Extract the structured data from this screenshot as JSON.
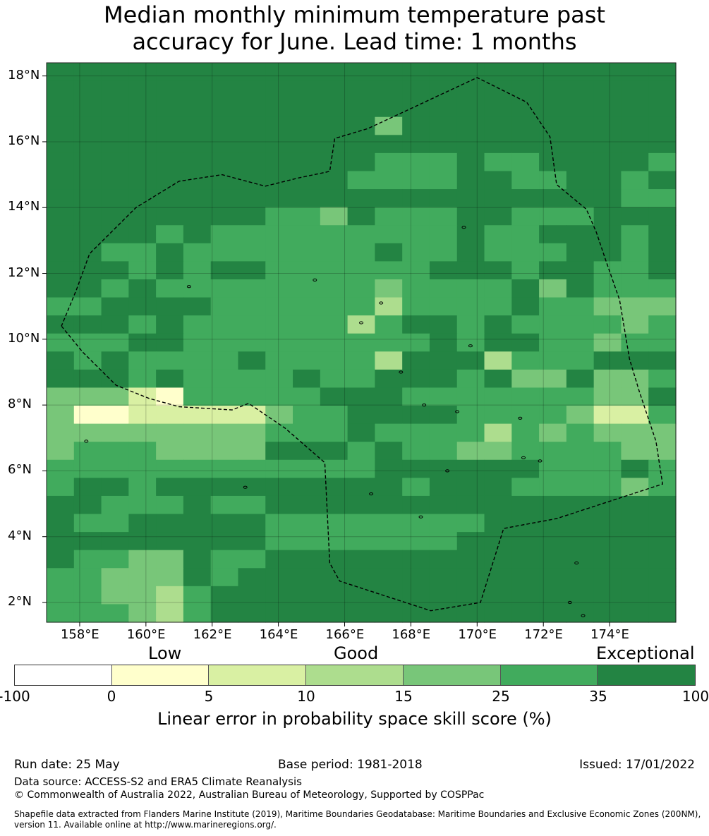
{
  "title": [
    "Median monthly minimum temperature past",
    "accuracy for June. Lead time: 1 months"
  ],
  "map": {
    "lat_range": [
      1.4,
      18.4
    ],
    "lon_range": [
      157.0,
      176.0
    ],
    "x_ticks": [
      "158°E",
      "160°E",
      "162°E",
      "164°E",
      "166°E",
      "168°E",
      "170°E",
      "172°E",
      "174°E"
    ],
    "x_tick_values": [
      158,
      160,
      162,
      164,
      166,
      168,
      170,
      172,
      174
    ],
    "y_ticks": [
      "18°N",
      "16°N",
      "14°N",
      "12°N",
      "10°N",
      "8°N",
      "6°N",
      "4°N",
      "2°N"
    ],
    "y_tick_values": [
      18,
      16,
      14,
      12,
      10,
      8,
      6,
      4,
      2
    ],
    "grid": true,
    "boundary_style": "dashed",
    "boundary_points": [
      [
        157.45,
        10.4
      ],
      [
        158.1,
        9.6
      ],
      [
        159.1,
        8.6
      ],
      [
        160.1,
        8.2
      ],
      [
        161.0,
        7.95
      ],
      [
        162.6,
        7.85
      ],
      [
        163.1,
        8.05
      ],
      [
        164.2,
        7.3
      ],
      [
        165.4,
        6.25
      ],
      [
        165.55,
        3.2
      ],
      [
        165.85,
        2.65
      ],
      [
        168.6,
        1.75
      ],
      [
        170.1,
        2.0
      ],
      [
        170.8,
        4.25
      ],
      [
        172.4,
        4.55
      ],
      [
        175.6,
        5.6
      ],
      [
        175.4,
        6.9
      ],
      [
        174.9,
        8.4
      ],
      [
        174.6,
        9.4
      ],
      [
        174.3,
        11.2
      ],
      [
        173.9,
        12.35
      ],
      [
        173.6,
        13.25
      ],
      [
        173.3,
        13.95
      ],
      [
        172.4,
        14.7
      ],
      [
        172.2,
        16.15
      ],
      [
        171.5,
        17.2
      ],
      [
        170.0,
        17.95
      ],
      [
        166.7,
        16.4
      ],
      [
        165.7,
        16.1
      ],
      [
        165.55,
        15.1
      ],
      [
        164.6,
        14.9
      ],
      [
        163.6,
        14.65
      ],
      [
        162.3,
        15.0
      ],
      [
        161.0,
        14.8
      ],
      [
        159.7,
        14.0
      ],
      [
        158.3,
        12.6
      ],
      [
        157.9,
        11.5
      ],
      [
        157.45,
        10.4
      ]
    ],
    "islands": [
      [
        158.2,
        6.9
      ],
      [
        163.0,
        5.5
      ],
      [
        166.5,
        10.5
      ],
      [
        167.7,
        9.0
      ],
      [
        168.4,
        8.0
      ],
      [
        169.4,
        7.8
      ],
      [
        171.4,
        6.4
      ],
      [
        171.9,
        6.3
      ],
      [
        173.0,
        3.2
      ],
      [
        172.8,
        2.0
      ],
      [
        173.2,
        1.6
      ],
      [
        165.1,
        11.8
      ],
      [
        161.3,
        11.6
      ],
      [
        167.1,
        11.1
      ],
      [
        169.8,
        9.8
      ],
      [
        171.3,
        7.6
      ],
      [
        166.8,
        5.3
      ],
      [
        168.3,
        4.6
      ],
      [
        169.1,
        6.0
      ],
      [
        169.6,
        13.4
      ]
    ]
  },
  "chart_data": {
    "type": "heatmap",
    "title": "Median monthly minimum temperature past accuracy for June. Lead time: 1 months",
    "variable": "Linear error in probability space skill score (%)",
    "x_range": [
      157.0,
      176.0
    ],
    "y_range": [
      1.4,
      18.4
    ],
    "grid_note": "Gridded LEPS skill score; lat rows from 18.4°N (north) to 1.4°N (south), ~0.83° cells, 23 columns × 31 rows, category indices 0-6 per legend bins",
    "classes": [
      "-100 to 0",
      "0 to 5",
      "5 to 10",
      "10 to 15",
      "15 to 25",
      "25 to 35",
      "35 to 100"
    ],
    "cells": [
      "66666666666666666666666",
      "66666666666666666666666",
      "66666666666666666666666",
      "66666666666646666666666",
      "66666666666666666666666",
      "66666666666655565566665",
      "66666666666555566556656",
      "66666666666666666666655",
      "66666666554655566555666",
      "66665655555555565566656",
      "66556555555565565556656",
      "66656566555555666566556",
      "66565555555545555646555",
      "55666655555535555655444",
      "66656555555356656555545",
      "55566555555555656655455",
      "65655556555536663555666",
      "66656555565566656446445",
      "44421555556665555555446",
      "41122222455666655554225",
      "44444444555655553545444",
      "45554444666565544555544",
      "55555555555566666655565",
      "56656666666665666555545",
      "66555655666666666666666",
      "65566666555555556666666",
      "66666666555555566666666",
      "65544655666666666666666",
      "55444656666666666666666",
      "55443566666666666666666",
      "55543566666666666666666"
    ]
  },
  "legend": {
    "category_labels": [
      "Low",
      "Good",
      "Exceptional"
    ],
    "ticks": [
      "-100",
      "0",
      "5",
      "10",
      "15",
      "25",
      "35",
      "100"
    ],
    "colors": [
      "#ffffff",
      "#ffffcc",
      "#d9f0a3",
      "#addd8e",
      "#78c679",
      "#41ab5d",
      "#238443"
    ],
    "title": "Linear error in probability space skill score (%)"
  },
  "footer": {
    "run_date": "Run date: 25 May",
    "base_period": "Base period: 1981-2018",
    "issued": "Issued: 17/01/2022",
    "data_source": "Data source: ACCESS-S2 and ERA5 Climate Reanalysis",
    "copyright": "© Commonwealth of Australia 2022, Australian Bureau of Meteorology, Supported by COSPPac",
    "shapefile_line1": "Shapefile data extracted from Flanders Marine Institute (2019), Maritime Boundaries Geodatabase: Maritime Boundaries and Exclusive Economic Zones (200NM),",
    "shapefile_line2": "version 11. Available online at http://www.marineregions.org/."
  }
}
